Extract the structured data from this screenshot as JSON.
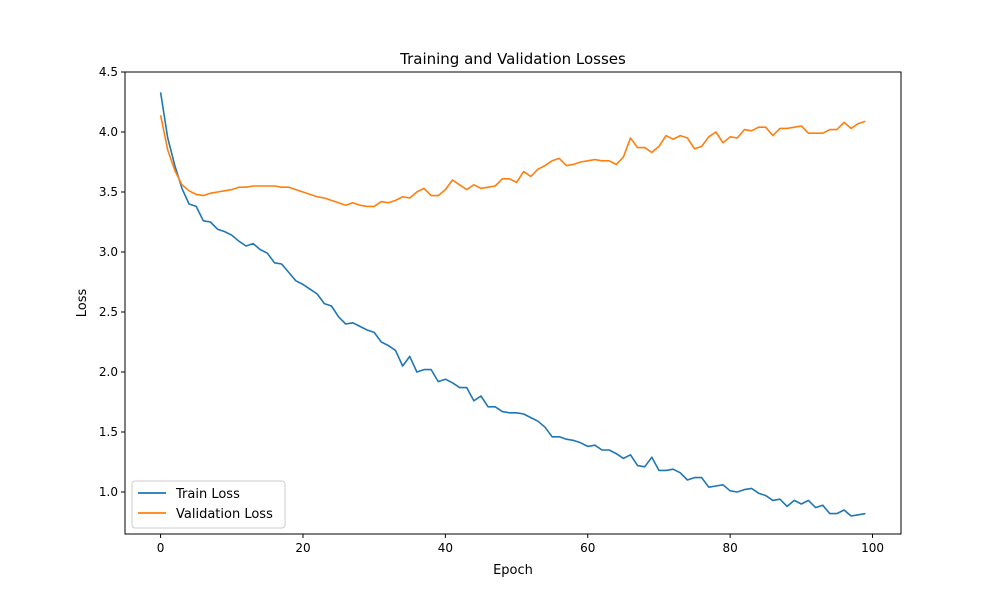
{
  "chart_data": {
    "type": "line",
    "title": "Training and Validation Losses",
    "xlabel": "Epoch",
    "ylabel": "Loss",
    "xlim": [
      -5,
      104
    ],
    "ylim": [
      0.65,
      4.5
    ],
    "xticks": [
      0,
      20,
      40,
      60,
      80,
      100
    ],
    "yticks": [
      1.0,
      1.5,
      2.0,
      2.5,
      3.0,
      3.5,
      4.0,
      4.5
    ],
    "grid": false,
    "legend_position": "lower-left",
    "x": [
      0,
      1,
      2,
      3,
      4,
      5,
      6,
      7,
      8,
      9,
      10,
      11,
      12,
      13,
      14,
      15,
      16,
      17,
      18,
      19,
      20,
      21,
      22,
      23,
      24,
      25,
      26,
      27,
      28,
      29,
      30,
      31,
      32,
      33,
      34,
      35,
      36,
      37,
      38,
      39,
      40,
      41,
      42,
      43,
      44,
      45,
      46,
      47,
      48,
      49,
      50,
      51,
      52,
      53,
      54,
      55,
      56,
      57,
      58,
      59,
      60,
      61,
      62,
      63,
      64,
      65,
      66,
      67,
      68,
      69,
      70,
      71,
      72,
      73,
      74,
      75,
      76,
      77,
      78,
      79,
      80,
      81,
      82,
      83,
      84,
      85,
      86,
      87,
      88,
      89,
      90,
      91,
      92,
      93,
      94,
      95,
      96,
      97,
      98,
      99
    ],
    "series": [
      {
        "name": "Train Loss",
        "color": "#1f77b4",
        "values": [
          4.33,
          3.95,
          3.72,
          3.53,
          3.4,
          3.38,
          3.26,
          3.25,
          3.19,
          3.17,
          3.14,
          3.09,
          3.05,
          3.07,
          3.02,
          2.99,
          2.91,
          2.9,
          2.83,
          2.76,
          2.73,
          2.69,
          2.65,
          2.57,
          2.55,
          2.46,
          2.4,
          2.41,
          2.38,
          2.35,
          2.33,
          2.25,
          2.22,
          2.18,
          2.05,
          2.13,
          2.0,
          2.02,
          2.02,
          1.92,
          1.94,
          1.91,
          1.87,
          1.87,
          1.76,
          1.8,
          1.71,
          1.71,
          1.67,
          1.66,
          1.66,
          1.65,
          1.62,
          1.59,
          1.54,
          1.46,
          1.46,
          1.44,
          1.43,
          1.41,
          1.38,
          1.39,
          1.35,
          1.35,
          1.32,
          1.28,
          1.31,
          1.22,
          1.21,
          1.29,
          1.18,
          1.18,
          1.19,
          1.16,
          1.1,
          1.12,
          1.12,
          1.04,
          1.05,
          1.06,
          1.01,
          1.0,
          1.02,
          1.03,
          0.99,
          0.97,
          0.93,
          0.94,
          0.88,
          0.93,
          0.9,
          0.93,
          0.87,
          0.89,
          0.82,
          0.82,
          0.85,
          0.8,
          0.81,
          0.82
        ]
      },
      {
        "name": "Validation Loss",
        "color": "#ff7f0e",
        "values": [
          4.14,
          3.85,
          3.68,
          3.56,
          3.51,
          3.48,
          3.47,
          3.49,
          3.5,
          3.51,
          3.52,
          3.54,
          3.54,
          3.55,
          3.55,
          3.55,
          3.55,
          3.54,
          3.54,
          3.52,
          3.5,
          3.48,
          3.46,
          3.45,
          3.43,
          3.41,
          3.39,
          3.41,
          3.39,
          3.38,
          3.38,
          3.42,
          3.41,
          3.43,
          3.46,
          3.45,
          3.5,
          3.53,
          3.47,
          3.47,
          3.52,
          3.6,
          3.56,
          3.52,
          3.56,
          3.53,
          3.54,
          3.55,
          3.61,
          3.61,
          3.58,
          3.67,
          3.63,
          3.69,
          3.72,
          3.76,
          3.78,
          3.72,
          3.73,
          3.75,
          3.76,
          3.77,
          3.76,
          3.76,
          3.73,
          3.79,
          3.95,
          3.87,
          3.87,
          3.83,
          3.88,
          3.97,
          3.94,
          3.97,
          3.95,
          3.86,
          3.88,
          3.96,
          4.0,
          3.91,
          3.96,
          3.95,
          4.02,
          4.01,
          4.04,
          4.04,
          3.97,
          4.03,
          4.03,
          4.04,
          4.05,
          3.99,
          3.99,
          3.99,
          4.02,
          4.02,
          4.08,
          4.03,
          4.07,
          4.09
        ]
      }
    ]
  }
}
